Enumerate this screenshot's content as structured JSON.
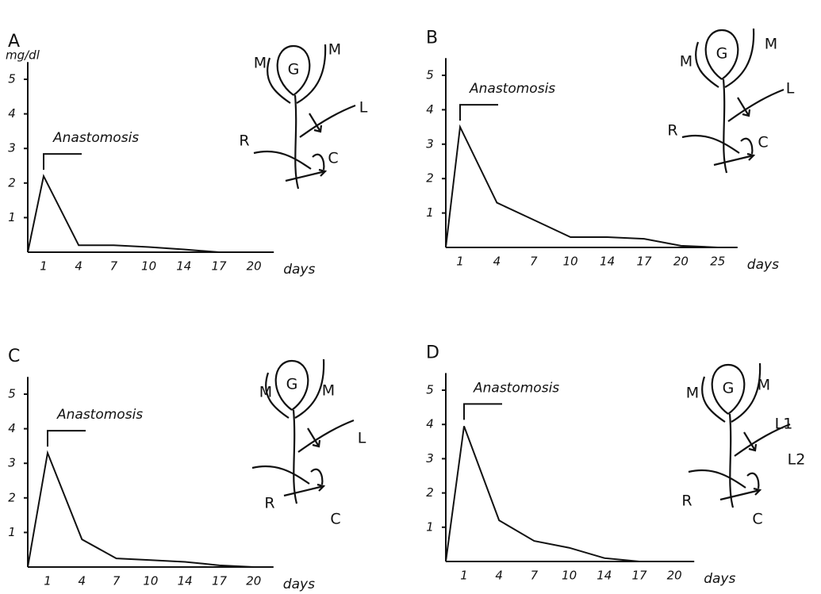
{
  "chart_data": [
    {
      "type": "line",
      "title": "A",
      "y_label": "mg/dl",
      "annotation": "Anastomosis",
      "x_label": "days",
      "categories": [
        null,
        "1",
        "4",
        "7",
        "10",
        "14",
        "17",
        "20"
      ],
      "values": [
        0,
        2.2,
        0.2,
        0.2,
        0.15,
        0.08,
        0,
        null
      ],
      "color": "#111",
      "ylim": [
        0,
        5.5
      ],
      "yticks": [
        1,
        2,
        3,
        4,
        5
      ],
      "diagram_labels": [
        "M",
        "G",
        "M",
        "L",
        "R",
        "C"
      ]
    },
    {
      "type": "line",
      "title": "B",
      "annotation": "Anastomosis",
      "x_label": "days",
      "categories": [
        null,
        "1",
        "4",
        "7",
        "10",
        "14",
        "17",
        "20",
        "25"
      ],
      "values": [
        0,
        3.5,
        1.3,
        0.8,
        0.3,
        0.3,
        0.25,
        0.05,
        0
      ],
      "color": "#111",
      "ylim": [
        0,
        5.5
      ],
      "yticks": [
        1,
        2,
        3,
        4,
        5
      ],
      "diagram_labels": [
        "M",
        "G",
        "M",
        "L",
        "R",
        "C"
      ]
    },
    {
      "type": "line",
      "title": "C",
      "annotation": "Anastomosis",
      "x_label": "days",
      "categories": [
        null,
        "1",
        "4",
        "7",
        "10",
        "14",
        "17",
        "20"
      ],
      "values": [
        0,
        3.3,
        0.8,
        0.25,
        0.2,
        0.15,
        0.05,
        0
      ],
      "color": "#111",
      "ylim": [
        0,
        5.5
      ],
      "yticks": [
        1,
        2,
        3,
        4,
        5
      ],
      "diagram_labels": [
        "M",
        "G",
        "M",
        "L",
        "R",
        "C"
      ]
    },
    {
      "type": "line",
      "title": "D",
      "annotation": "Anastomosis",
      "x_label": "days",
      "categories": [
        null,
        "1",
        "4",
        "7",
        "10",
        "14",
        "17",
        "20"
      ],
      "values": [
        0,
        3.95,
        1.2,
        0.6,
        0.4,
        0.1,
        0,
        0
      ],
      "color": "#111",
      "ylim": [
        0,
        5.5
      ],
      "yticks": [
        1,
        2,
        3,
        4,
        5
      ],
      "diagram_labels": [
        "M",
        "G",
        "M",
        "L1",
        "L2",
        "R",
        "C"
      ]
    }
  ]
}
